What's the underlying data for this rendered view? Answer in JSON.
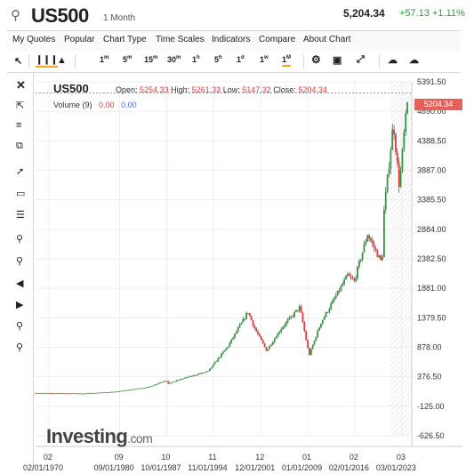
{
  "header": {
    "search_icon": "search-icon",
    "symbol": "US500",
    "interval": "1 Month",
    "price": "5,204.34",
    "change": "+57.13 +1.11%",
    "change_color": "#2d9a3e"
  },
  "menu": [
    "My Quotes",
    "Popular",
    "Chart Type",
    "Time Scales",
    "Indicators",
    "Compare",
    "About Chart"
  ],
  "toolbar": {
    "intervals": [
      "1m",
      "5m",
      "15m",
      "30m",
      "1h",
      "5h",
      "1d",
      "1w",
      "1M"
    ],
    "active_interval": "1M",
    "icons": [
      "pointer-icon",
      "candlestick-icon",
      "mountain-icon",
      "gear-icon",
      "camera-icon",
      "fullscreen-icon",
      "cloud-download-icon",
      "cloud-upload-icon"
    ]
  },
  "left_tools": [
    "close-icon",
    "select-cursor-icon",
    "fibonacci-icon",
    "clone-icon",
    "trendline-icon",
    "rectangle-icon",
    "lines-icon",
    "zoom-in-icon",
    "zoom-out-icon",
    "arrow-left-icon",
    "arrow-right-icon",
    "add-person-icon",
    "remove-person-icon"
  ],
  "overlay": {
    "symbol": "US500",
    "open_label": "Open:",
    "open": "5254.33",
    "high_label": "High:",
    "high": "5261.33",
    "low_label": "Low:",
    "low": "5147.32",
    "close_label": "Close:",
    "close": "5204.34",
    "volume_label": "Volume (9)",
    "volume_a": "0.00",
    "volume_b": "0.00",
    "last_price_tag": "5204.34",
    "tag_color": "#e8605a"
  },
  "logo": {
    "text": "Investing",
    "domain": ".com"
  },
  "chart_data": {
    "type": "line",
    "title": "",
    "y_ticks": [
      5391.5,
      4890.0,
      4388.5,
      3887.0,
      3385.5,
      2884.0,
      2382.5,
      1881.0,
      1379.5,
      878.0,
      376.5,
      -125.0,
      -626.5
    ],
    "y_tick_labels": [
      "5391.50",
      "4890.00",
      "4388.50",
      "3887.00",
      "3385.50",
      "2884.00",
      "2382.50",
      "1881.00",
      "1379.50",
      "878.00",
      "376.50",
      "-125.00",
      "-626.50"
    ],
    "ylim": [
      -626.5,
      5391.5
    ],
    "x_tick_labels": [
      {
        "top": "02",
        "bottom": "02/01/1970",
        "year": 1970
      },
      {
        "top": "09",
        "bottom": "09/01/1980",
        "year": 1980.67
      },
      {
        "top": "10",
        "bottom": "10/01/1987",
        "year": 1987.75
      },
      {
        "top": "11",
        "bottom": "11/01/1994",
        "year": 1994.83
      },
      {
        "top": "12",
        "bottom": "12/01/2001",
        "year": 2001.92
      },
      {
        "top": "01",
        "bottom": "01/01/2009",
        "year": 2009.0
      },
      {
        "top": "02",
        "bottom": "02/01/2016",
        "year": 2016.08
      },
      {
        "top": "03",
        "bottom": "03/01/2023",
        "year": 2023.17
      }
    ],
    "series": [
      {
        "values": [
          {
            "x": 1968,
            "y": 100
          },
          {
            "x": 1975,
            "y": 90
          },
          {
            "x": 1980,
            "y": 120
          },
          {
            "x": 1985,
            "y": 200
          },
          {
            "x": 1987.7,
            "y": 320
          },
          {
            "x": 1988,
            "y": 260
          },
          {
            "x": 1990,
            "y": 340
          },
          {
            "x": 1994,
            "y": 470
          },
          {
            "x": 1997,
            "y": 900
          },
          {
            "x": 2000,
            "y": 1480
          },
          {
            "x": 2001,
            "y": 1200
          },
          {
            "x": 2002.8,
            "y": 820
          },
          {
            "x": 2005,
            "y": 1200
          },
          {
            "x": 2007.8,
            "y": 1560
          },
          {
            "x": 2009.2,
            "y": 740
          },
          {
            "x": 2011,
            "y": 1300
          },
          {
            "x": 2013,
            "y": 1700
          },
          {
            "x": 2015,
            "y": 2100
          },
          {
            "x": 2016,
            "y": 2000
          },
          {
            "x": 2018,
            "y": 2800
          },
          {
            "x": 2020.2,
            "y": 2300
          },
          {
            "x": 2020.5,
            "y": 3200
          },
          {
            "x": 2021.9,
            "y": 4700
          },
          {
            "x": 2022.8,
            "y": 3600
          },
          {
            "x": 2023.5,
            "y": 4500
          },
          {
            "x": 2024.2,
            "y": 5204
          }
        ]
      }
    ],
    "series_color_up": "#2d9a3e",
    "series_color_down": "#e23b3b",
    "last_price": 5204.34,
    "grid": true
  }
}
